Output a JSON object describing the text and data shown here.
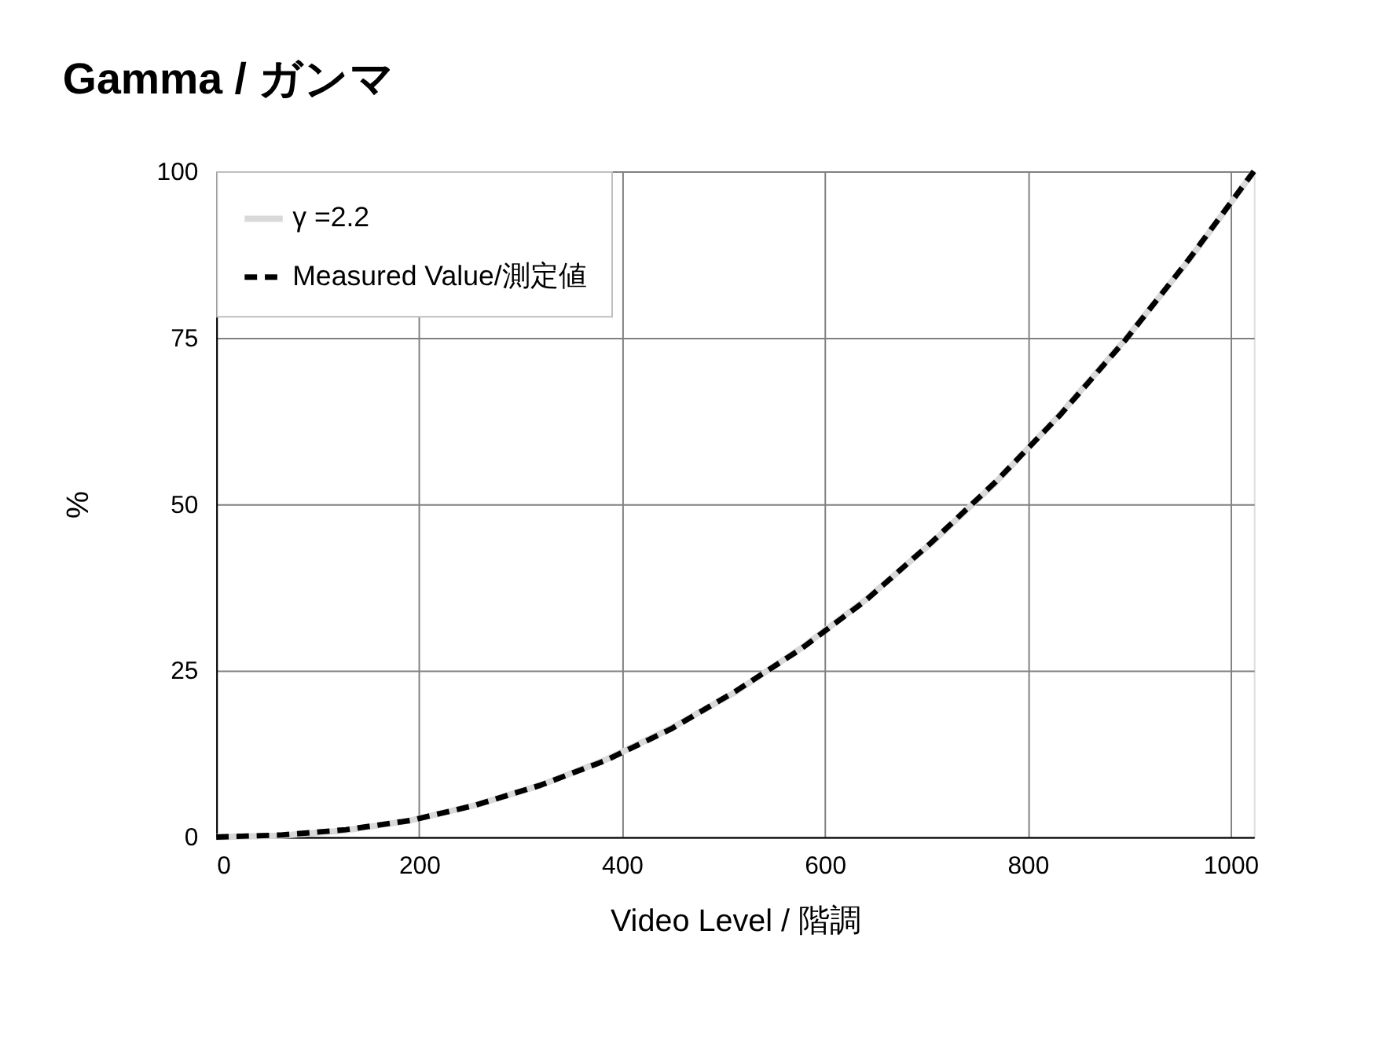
{
  "chart_data": {
    "type": "line",
    "title": "Gamma / ガンマ",
    "xlabel": "Video Level / 階調",
    "ylabel": "%",
    "x": [
      0,
      64,
      128,
      192,
      256,
      320,
      384,
      448,
      512,
      576,
      640,
      704,
      768,
      832,
      896,
      960,
      1023
    ],
    "xlim": [
      0,
      1023
    ],
    "xticks": [
      0,
      200,
      400,
      600,
      800,
      1000
    ],
    "ylim": [
      0,
      100
    ],
    "yticks": [
      0,
      25,
      50,
      75,
      100
    ],
    "grid": true,
    "legend": "top left",
    "marker": "none",
    "series": [
      {
        "name": "γ =2.2",
        "color": "#d9d9d9",
        "line_style": "solid",
        "values": [
          0,
          0.2,
          1,
          2.5,
          4.8,
          7.8,
          11.6,
          16.3,
          21.8,
          28.3,
          35.6,
          44.0,
          53.2,
          63.5,
          74.7,
          86.9,
          100
        ]
      },
      {
        "name": "Measured Value/測定値",
        "color": "#000000",
        "line_style": "dashed",
        "values": [
          0,
          0.3,
          1.1,
          2.5,
          4.8,
          7.8,
          11.5,
          16.2,
          21.9,
          28.2,
          35.5,
          44.1,
          53.3,
          63.4,
          74.6,
          87.0,
          100
        ]
      }
    ]
  }
}
